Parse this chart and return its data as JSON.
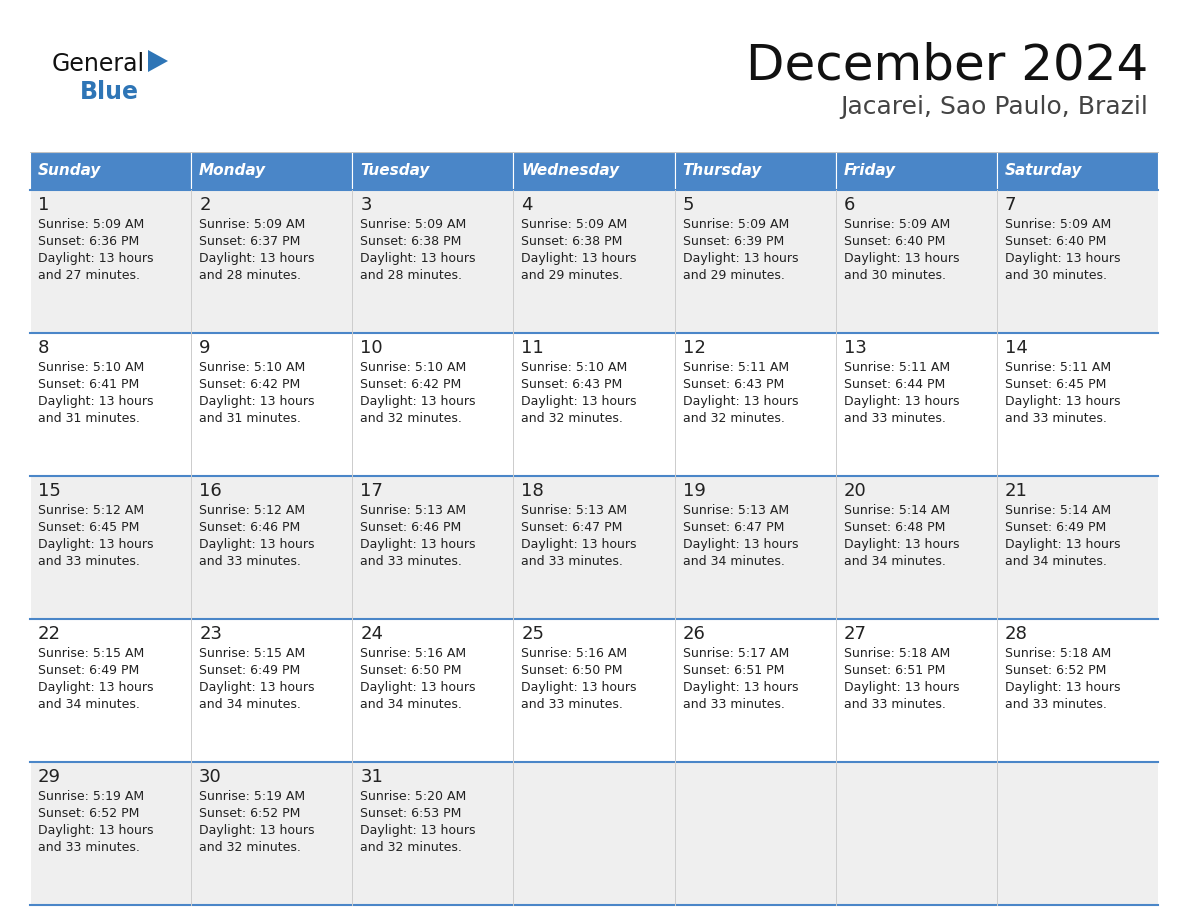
{
  "title": "December 2024",
  "subtitle": "Jacarei, Sao Paulo, Brazil",
  "days_of_week": [
    "Sunday",
    "Monday",
    "Tuesday",
    "Wednesday",
    "Thursday",
    "Friday",
    "Saturday"
  ],
  "header_bg_color": "#4a86c8",
  "header_text_color": "#ffffff",
  "cell_bg_color_even": "#efefef",
  "cell_bg_color_odd": "#ffffff",
  "cell_border_color": "#4a86c8",
  "day_number_color": "#222222",
  "cell_text_color": "#222222",
  "title_color": "#111111",
  "subtitle_color": "#444444",
  "general_text_color": "#111111",
  "blue_color": "#2e75b6",
  "calendar_data": [
    [
      {
        "day": 1,
        "sunrise": "5:09 AM",
        "sunset": "6:36 PM",
        "daylight_hours": 13,
        "daylight_minutes": 27
      },
      {
        "day": 2,
        "sunrise": "5:09 AM",
        "sunset": "6:37 PM",
        "daylight_hours": 13,
        "daylight_minutes": 28
      },
      {
        "day": 3,
        "sunrise": "5:09 AM",
        "sunset": "6:38 PM",
        "daylight_hours": 13,
        "daylight_minutes": 28
      },
      {
        "day": 4,
        "sunrise": "5:09 AM",
        "sunset": "6:38 PM",
        "daylight_hours": 13,
        "daylight_minutes": 29
      },
      {
        "day": 5,
        "sunrise": "5:09 AM",
        "sunset": "6:39 PM",
        "daylight_hours": 13,
        "daylight_minutes": 29
      },
      {
        "day": 6,
        "sunrise": "5:09 AM",
        "sunset": "6:40 PM",
        "daylight_hours": 13,
        "daylight_minutes": 30
      },
      {
        "day": 7,
        "sunrise": "5:09 AM",
        "sunset": "6:40 PM",
        "daylight_hours": 13,
        "daylight_minutes": 30
      }
    ],
    [
      {
        "day": 8,
        "sunrise": "5:10 AM",
        "sunset": "6:41 PM",
        "daylight_hours": 13,
        "daylight_minutes": 31
      },
      {
        "day": 9,
        "sunrise": "5:10 AM",
        "sunset": "6:42 PM",
        "daylight_hours": 13,
        "daylight_minutes": 31
      },
      {
        "day": 10,
        "sunrise": "5:10 AM",
        "sunset": "6:42 PM",
        "daylight_hours": 13,
        "daylight_minutes": 32
      },
      {
        "day": 11,
        "sunrise": "5:10 AM",
        "sunset": "6:43 PM",
        "daylight_hours": 13,
        "daylight_minutes": 32
      },
      {
        "day": 12,
        "sunrise": "5:11 AM",
        "sunset": "6:43 PM",
        "daylight_hours": 13,
        "daylight_minutes": 32
      },
      {
        "day": 13,
        "sunrise": "5:11 AM",
        "sunset": "6:44 PM",
        "daylight_hours": 13,
        "daylight_minutes": 33
      },
      {
        "day": 14,
        "sunrise": "5:11 AM",
        "sunset": "6:45 PM",
        "daylight_hours": 13,
        "daylight_minutes": 33
      }
    ],
    [
      {
        "day": 15,
        "sunrise": "5:12 AM",
        "sunset": "6:45 PM",
        "daylight_hours": 13,
        "daylight_minutes": 33
      },
      {
        "day": 16,
        "sunrise": "5:12 AM",
        "sunset": "6:46 PM",
        "daylight_hours": 13,
        "daylight_minutes": 33
      },
      {
        "day": 17,
        "sunrise": "5:13 AM",
        "sunset": "6:46 PM",
        "daylight_hours": 13,
        "daylight_minutes": 33
      },
      {
        "day": 18,
        "sunrise": "5:13 AM",
        "sunset": "6:47 PM",
        "daylight_hours": 13,
        "daylight_minutes": 33
      },
      {
        "day": 19,
        "sunrise": "5:13 AM",
        "sunset": "6:47 PM",
        "daylight_hours": 13,
        "daylight_minutes": 34
      },
      {
        "day": 20,
        "sunrise": "5:14 AM",
        "sunset": "6:48 PM",
        "daylight_hours": 13,
        "daylight_minutes": 34
      },
      {
        "day": 21,
        "sunrise": "5:14 AM",
        "sunset": "6:49 PM",
        "daylight_hours": 13,
        "daylight_minutes": 34
      }
    ],
    [
      {
        "day": 22,
        "sunrise": "5:15 AM",
        "sunset": "6:49 PM",
        "daylight_hours": 13,
        "daylight_minutes": 34
      },
      {
        "day": 23,
        "sunrise": "5:15 AM",
        "sunset": "6:49 PM",
        "daylight_hours": 13,
        "daylight_minutes": 34
      },
      {
        "day": 24,
        "sunrise": "5:16 AM",
        "sunset": "6:50 PM",
        "daylight_hours": 13,
        "daylight_minutes": 34
      },
      {
        "day": 25,
        "sunrise": "5:16 AM",
        "sunset": "6:50 PM",
        "daylight_hours": 13,
        "daylight_minutes": 33
      },
      {
        "day": 26,
        "sunrise": "5:17 AM",
        "sunset": "6:51 PM",
        "daylight_hours": 13,
        "daylight_minutes": 33
      },
      {
        "day": 27,
        "sunrise": "5:18 AM",
        "sunset": "6:51 PM",
        "daylight_hours": 13,
        "daylight_minutes": 33
      },
      {
        "day": 28,
        "sunrise": "5:18 AM",
        "sunset": "6:52 PM",
        "daylight_hours": 13,
        "daylight_minutes": 33
      }
    ],
    [
      {
        "day": 29,
        "sunrise": "5:19 AM",
        "sunset": "6:52 PM",
        "daylight_hours": 13,
        "daylight_minutes": 33
      },
      {
        "day": 30,
        "sunrise": "5:19 AM",
        "sunset": "6:52 PM",
        "daylight_hours": 13,
        "daylight_minutes": 32
      },
      {
        "day": 31,
        "sunrise": "5:20 AM",
        "sunset": "6:53 PM",
        "daylight_hours": 13,
        "daylight_minutes": 32
      },
      null,
      null,
      null,
      null
    ]
  ]
}
